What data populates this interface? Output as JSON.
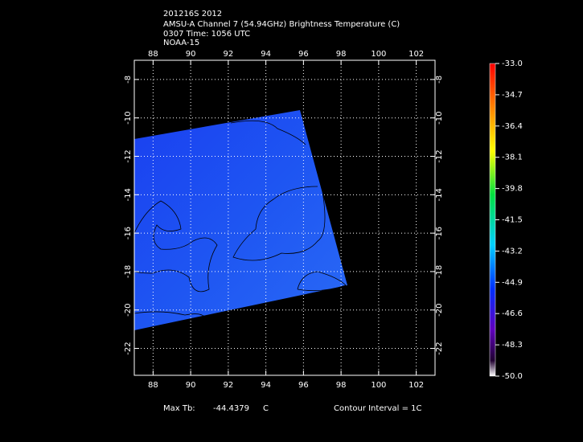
{
  "header": {
    "lines": [
      "201216S 2012",
      "AMSU-A Channel 7 (54.94GHz) Brightness Temperature (C)",
      "0307 Time: 1056 UTC",
      "NOAA-15"
    ]
  },
  "map": {
    "xlim": [
      87,
      103
    ],
    "xticks": [
      88,
      90,
      92,
      94,
      96,
      98,
      100,
      102
    ],
    "ylim": [
      -23.4,
      -7
    ],
    "yticks": [
      -8,
      -10,
      -12,
      -14,
      -16,
      -18,
      -20,
      -22
    ]
  },
  "colorbar": {
    "lim": [
      -50,
      -33
    ],
    "ticks": [
      {
        "value": -33,
        "label": "-33.0"
      },
      -34.7,
      -36.4,
      -38.1,
      -39.8,
      -41.5,
      -43.2,
      -44.9,
      -46.6,
      -48.3,
      {
        "value": -50,
        "label": "-50.0"
      }
    ]
  },
  "footer": {
    "max_label": "Max Tb:",
    "max_value": -44.4379,
    "max_unit": "C",
    "contour": "Contour Interval = 1C"
  }
}
